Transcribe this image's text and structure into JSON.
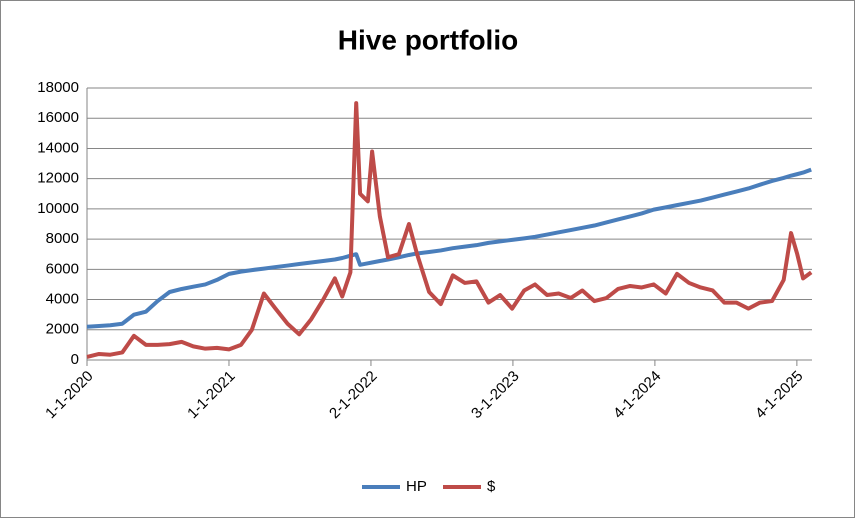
{
  "chart_data": {
    "type": "line",
    "title": "Hive portfolio",
    "x": [
      "2020-01-01",
      "2020-02-01",
      "2020-03-01",
      "2020-04-01",
      "2020-05-01",
      "2020-06-01",
      "2020-07-01",
      "2020-08-01",
      "2020-09-01",
      "2020-10-01",
      "2020-11-01",
      "2020-12-01",
      "2021-01-01",
      "2021-02-01",
      "2021-03-01",
      "2021-04-01",
      "2021-05-01",
      "2021-06-01",
      "2021-07-01",
      "2021-08-01",
      "2021-09-01",
      "2021-10-01",
      "2021-10-20",
      "2021-11-10",
      "2021-11-25",
      "2021-12-05",
      "2021-12-25",
      "2022-01-05",
      "2022-01-25",
      "2022-02-15",
      "2022-03-15",
      "2022-04-10",
      "2022-05-01",
      "2022-06-01",
      "2022-07-01",
      "2022-08-01",
      "2022-09-01",
      "2022-10-01",
      "2022-11-01",
      "2022-12-01",
      "2023-01-01",
      "2023-02-01",
      "2023-03-01",
      "2023-04-01",
      "2023-05-01",
      "2023-06-01",
      "2023-07-01",
      "2023-08-01",
      "2023-09-01",
      "2023-10-01",
      "2023-11-01",
      "2023-12-01",
      "2024-01-01",
      "2024-02-01",
      "2024-03-01",
      "2024-04-01",
      "2024-05-01",
      "2024-06-01",
      "2024-07-01",
      "2024-08-01",
      "2024-09-01",
      "2024-10-01",
      "2024-11-01",
      "2024-12-01",
      "2024-12-20",
      "2025-01-05",
      "2025-01-20",
      "2025-02-10"
    ],
    "series": [
      {
        "name": "HP",
        "color": "#4a7ebb",
        "values": [
          2200,
          2250,
          2300,
          2400,
          3000,
          3200,
          3900,
          4500,
          4700,
          4850,
          5000,
          5300,
          5700,
          5850,
          5950,
          6050,
          6150,
          6250,
          6350,
          6450,
          6550,
          6650,
          6750,
          6900,
          7000,
          6300,
          6400,
          6450,
          6550,
          6650,
          6800,
          6950,
          7050,
          7150,
          7250,
          7400,
          7500,
          7600,
          7750,
          7850,
          7950,
          8050,
          8150,
          8300,
          8450,
          8600,
          8750,
          8900,
          9100,
          9300,
          9500,
          9700,
          9950,
          10100,
          10250,
          10400,
          10550,
          10750,
          10950,
          11150,
          11350,
          11600,
          11850,
          12050,
          12200,
          12300,
          12400,
          12600
        ]
      },
      {
        "name": "$",
        "color": "#be4b48",
        "values": [
          200,
          400,
          350,
          500,
          1600,
          1000,
          1000,
          1050,
          1200,
          900,
          750,
          800,
          700,
          1000,
          2000,
          4400,
          3400,
          2400,
          1700,
          2700,
          4000,
          5400,
          4200,
          5800,
          17000,
          11000,
          10500,
          13800,
          9500,
          6800,
          7000,
          9000,
          7000,
          4500,
          3700,
          5600,
          5100,
          5200,
          3800,
          4300,
          3400,
          4600,
          5000,
          4300,
          4400,
          4100,
          4600,
          3900,
          4100,
          4700,
          4900,
          4800,
          5000,
          4400,
          5700,
          5100,
          4800,
          4600,
          3800,
          3800,
          3400,
          3800,
          3900,
          5300,
          8400,
          7000,
          5400,
          5800
        ]
      }
    ],
    "xlim": [
      "2020-01-01",
      "2025-02-12"
    ],
    "xticks": [
      {
        "value": "2020-01-01",
        "label": "1-1-2020"
      },
      {
        "value": "2021-01-01",
        "label": "1-1-2021"
      },
      {
        "value": "2022-01-02",
        "label": "2-1-2022"
      },
      {
        "value": "2023-01-03",
        "label": "3-1-2023"
      },
      {
        "value": "2024-01-04",
        "label": "4-1-2024"
      },
      {
        "value": "2025-01-04",
        "label": "4-1-2025"
      }
    ],
    "ylim": [
      0,
      18000
    ],
    "yticks": [
      0,
      2000,
      4000,
      6000,
      8000,
      10000,
      12000,
      14000,
      16000,
      18000
    ],
    "grid": true,
    "legend": "bottom"
  }
}
